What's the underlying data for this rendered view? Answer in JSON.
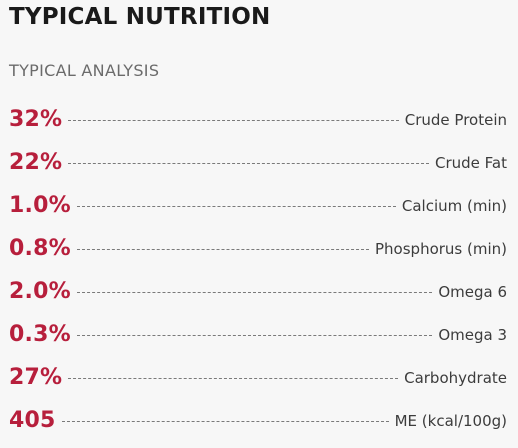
{
  "header": {
    "title": "TYPICAL NUTRITION",
    "subtitle": "TYPICAL ANALYSIS"
  },
  "colors": {
    "value_accent": "#b71f3c",
    "label_text": "#3c3c3c",
    "background": "#f7f7f7"
  },
  "rows": [
    {
      "value": "32%",
      "label": "Crude Protein"
    },
    {
      "value": "22%",
      "label": "Crude Fat"
    },
    {
      "value": "1.0%",
      "label": "Calcium (min)"
    },
    {
      "value": "0.8%",
      "label": "Phosphorus (min)"
    },
    {
      "value": "2.0%",
      "label": "Omega 6"
    },
    {
      "value": "0.3%",
      "label": "Omega 3"
    },
    {
      "value": "27%",
      "label": "Carbohydrate"
    },
    {
      "value": "405",
      "label": "ME (kcal/100g)"
    }
  ]
}
